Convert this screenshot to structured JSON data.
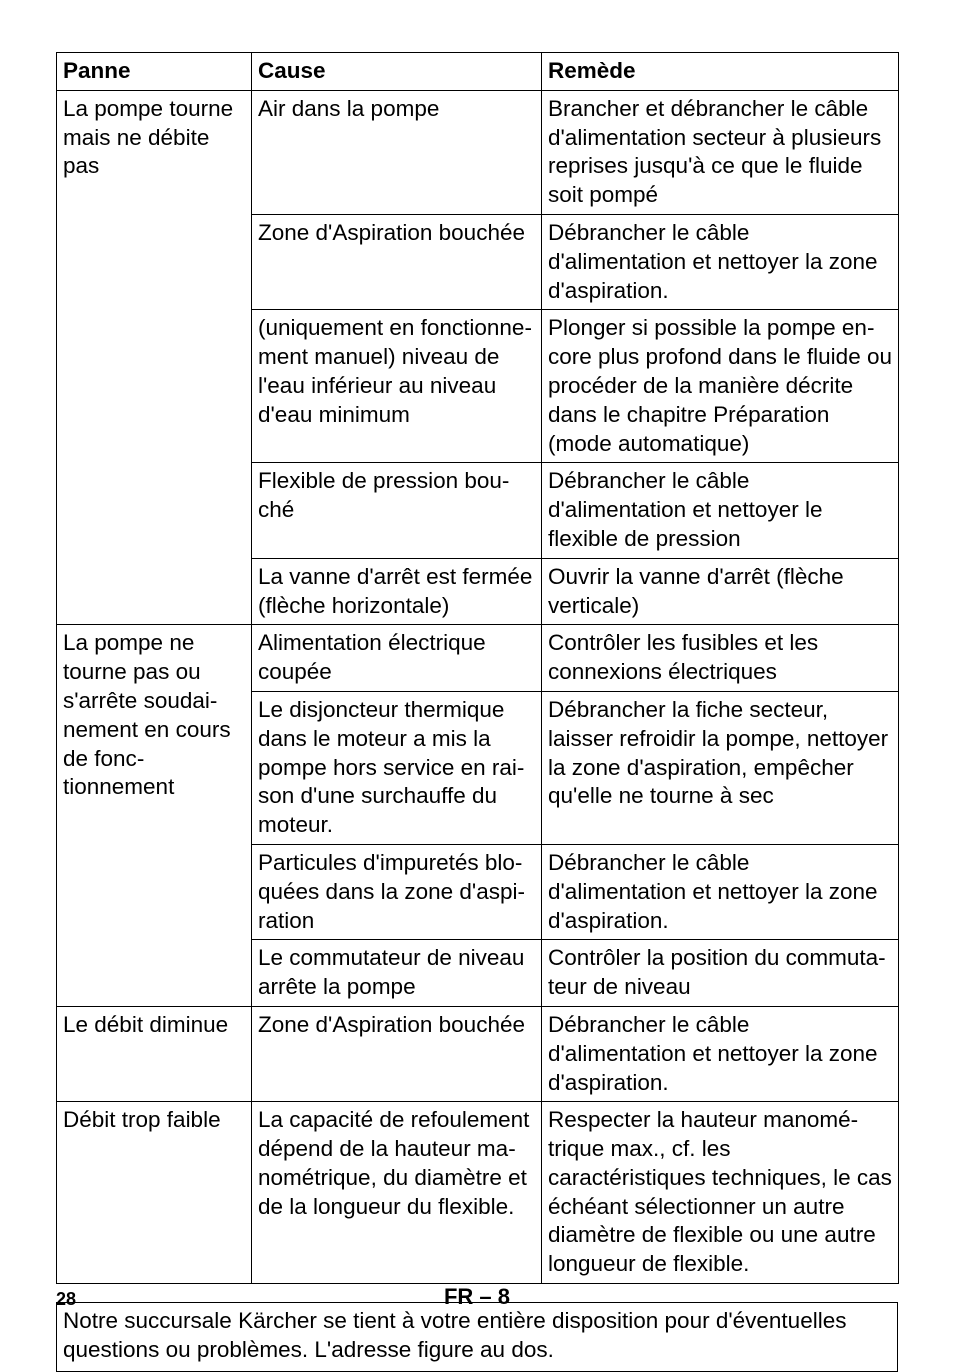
{
  "table": {
    "headers": {
      "c1": "Panne",
      "c2": "Cause",
      "c3": "Remède"
    },
    "r1": {
      "panne": "La pompe tourne mais ne débite pas",
      "cause": "Air dans la pompe",
      "remede": "Brancher et débrancher le câble d'alimentation secteur à plusieurs reprises jusqu'à ce que le fluide soit pompé"
    },
    "r2": {
      "cause": "Zone d'Aspiration bouchée",
      "remede": "Débrancher le câble d'alimentation et nettoyer la zone d'aspiration."
    },
    "r3": {
      "cause": "(uniquement en fonctionne­ment manuel) niveau de l'eau inférieur au niveau d'eau minimum",
      "remede": "Plonger si possible la pompe en­core plus profond dans le fluide ou procéder de la manière décrite dans le chapitre Préparation (mode automatique)"
    },
    "r4": {
      "cause": "Flexible de pression bou­ché",
      "remede": "Débrancher le câble d'alimentation et nettoyer le flexible de pression"
    },
    "r5": {
      "cause": "La vanne d'arrêt est fermée (flèche horizontale)",
      "remede": "Ouvrir la vanne d'arrêt (flèche verti­cale)"
    },
    "r6": {
      "panne": "La pompe ne tourne pas ou s'arrête soudai­nement en cours de fonc­tionnement",
      "cause": "Alimentation électrique coupée",
      "remede": "Contrôler les fusibles et les connexions électriques"
    },
    "r7": {
      "cause": "Le disjoncteur thermique dans le moteur a mis la pompe hors service en rai­son d'une surchauffe du moteur.",
      "remede": "Débrancher la fiche secteur, laisser refroidir la pompe, nettoyer la zone d'aspiration, empêcher qu'elle ne tourne à sec"
    },
    "r8": {
      "cause": "Particules d'impuretés blo­quées dans la zone d'aspi­ration",
      "remede": "Débrancher le câble d'alimentation et nettoyer la zone d'aspiration."
    },
    "r9": {
      "cause": "Le commutateur de niveau arrête la pompe",
      "remede": "Contrôler la position du commuta­teur de niveau"
    },
    "r10": {
      "panne": "Le débit dimi­nue",
      "cause": "Zone d'Aspiration bouchée",
      "remede": "Débrancher le câble d'alimentation et nettoyer la zone d'aspiration."
    },
    "r11": {
      "panne": "Débit trop faible",
      "cause": "La capacité de refoulement dépend de la hauteur ma­nométrique, du diamètre et de la longueur du flexible.",
      "remede": "Respecter la hauteur manomé­trique max., cf. les caractéristiques techniques, le cas échéant sélec­tionner un autre diamètre de flexible ou une autre longueur de flexible."
    }
  },
  "note": "Notre succursale Kärcher se tient à votre entière disposition pour d'éventuelles questions ou problèmes. L'adresse figure au dos.",
  "footer": {
    "page": "28",
    "code": "FR – 8"
  }
}
